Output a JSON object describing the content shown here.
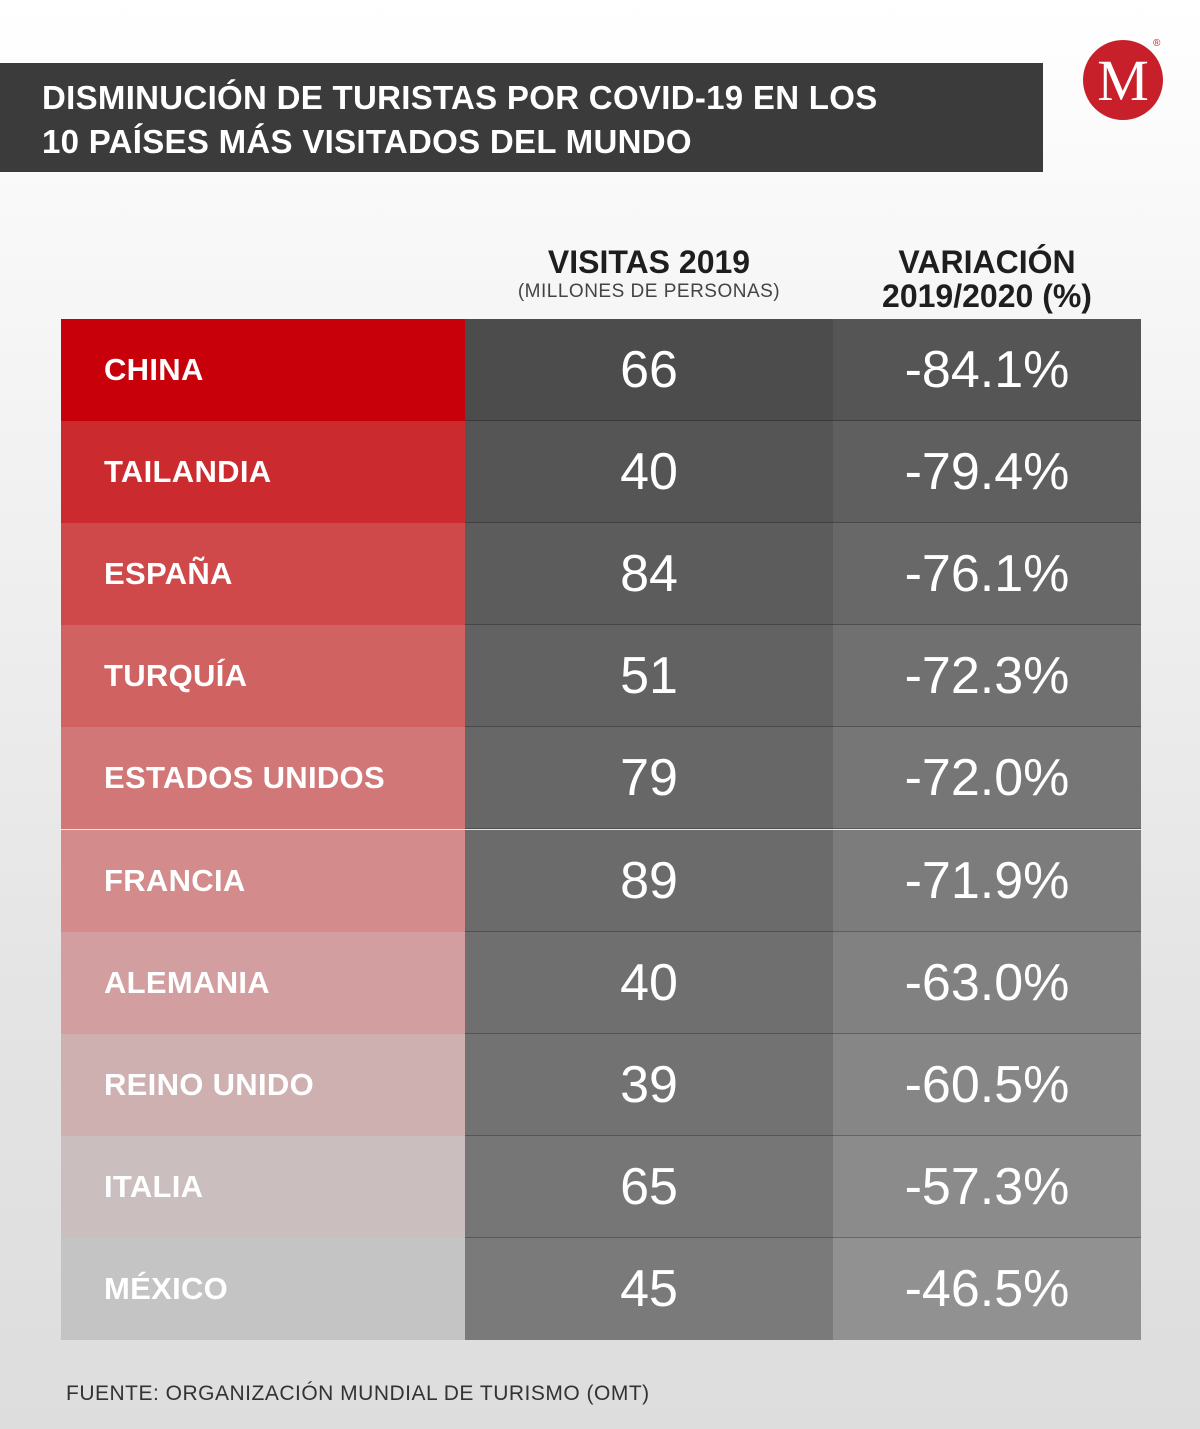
{
  "title": {
    "line1": "DISMINUCIÓN DE TURISTAS POR COVID-19 EN LOS",
    "line2": "10 PAÍSES MÁS VISITADOS DEL MUNDO"
  },
  "logo": {
    "letter": "M",
    "registered": "®",
    "color": "#c7202a"
  },
  "columns": {
    "visitas": {
      "title": "VISITAS 2019",
      "subtitle": "(MILLONES DE PERSONAS)"
    },
    "variacion": {
      "line1": "VARIACIÓN",
      "line2": "2019/2020 (%)"
    }
  },
  "chart_data": {
    "type": "table",
    "columns": [
      "",
      "VISITAS 2019 (MILLONES DE PERSONAS)",
      "VARIACIÓN 2019/2020 (%)"
    ],
    "rows": [
      {
        "country": "CHINA",
        "visits": "66",
        "variation": "-84.1%"
      },
      {
        "country": "TAILANDIA",
        "visits": "40",
        "variation": "-79.4%"
      },
      {
        "country": "ESPAÑA",
        "visits": "84",
        "variation": "-76.1%"
      },
      {
        "country": "TURQUÍA",
        "visits": "51",
        "variation": "-72.3%"
      },
      {
        "country": "ESTADOS UNIDOS",
        "visits": "79",
        "variation": "-72.0%"
      },
      {
        "country": "FRANCIA",
        "visits": "89",
        "variation": "-71.9%"
      },
      {
        "country": "ALEMANIA",
        "visits": "40",
        "variation": "-63.0%"
      },
      {
        "country": "REINO UNIDO",
        "visits": "39",
        "variation": "-60.5%"
      },
      {
        "country": "ITALIA",
        "visits": "65",
        "variation": "-57.3%"
      },
      {
        "country": "MÉXICO",
        "visits": "45",
        "variation": "-46.5%"
      }
    ],
    "row_colors": {
      "country": [
        "#c8000a",
        "#cb2a2e",
        "#cf494b",
        "#d06262",
        "#d27778",
        "#d38b8c",
        "#d39e9f",
        "#cfb0b1",
        "#cbbebf",
        "#c4c4c4"
      ],
      "visits": [
        "#4c4c4c",
        "#555555",
        "#5c5c5c",
        "#626262",
        "#676767",
        "#6b6b6b",
        "#6f6f6f",
        "#727272",
        "#767676",
        "#7a7a7a"
      ],
      "variation": [
        "#555555",
        "#5f5f5f",
        "#686868",
        "#707070",
        "#767676",
        "#7c7c7c",
        "#818181",
        "#868686",
        "#8b8b8b",
        "#919191"
      ]
    }
  },
  "footer": "FUENTE: ORGANIZACIÓN MUNDIAL DE TURISMO (OMT)"
}
